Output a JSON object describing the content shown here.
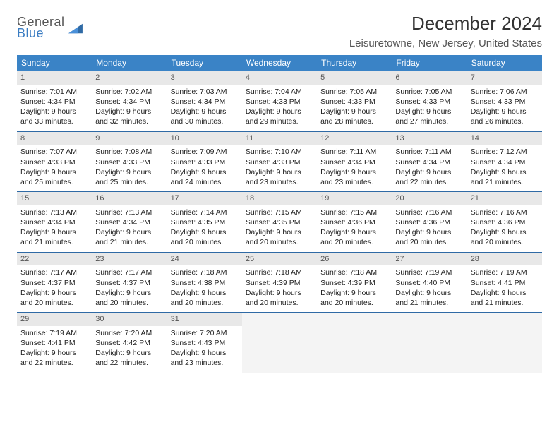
{
  "logo": {
    "line1": "General",
    "line2": "Blue"
  },
  "title": "December 2024",
  "location": "Leisuretowne, New Jersey, United States",
  "header_bg": "#3a83c6",
  "border_color": "#2f6aa5",
  "daynum_bg": "#e8e8e8",
  "day_headers": [
    "Sunday",
    "Monday",
    "Tuesday",
    "Wednesday",
    "Thursday",
    "Friday",
    "Saturday"
  ],
  "weeks": [
    [
      {
        "n": "1",
        "sr": "7:01 AM",
        "ss": "4:34 PM",
        "dl": "9 hours and 33 minutes."
      },
      {
        "n": "2",
        "sr": "7:02 AM",
        "ss": "4:34 PM",
        "dl": "9 hours and 32 minutes."
      },
      {
        "n": "3",
        "sr": "7:03 AM",
        "ss": "4:34 PM",
        "dl": "9 hours and 30 minutes."
      },
      {
        "n": "4",
        "sr": "7:04 AM",
        "ss": "4:33 PM",
        "dl": "9 hours and 29 minutes."
      },
      {
        "n": "5",
        "sr": "7:05 AM",
        "ss": "4:33 PM",
        "dl": "9 hours and 28 minutes."
      },
      {
        "n": "6",
        "sr": "7:05 AM",
        "ss": "4:33 PM",
        "dl": "9 hours and 27 minutes."
      },
      {
        "n": "7",
        "sr": "7:06 AM",
        "ss": "4:33 PM",
        "dl": "9 hours and 26 minutes."
      }
    ],
    [
      {
        "n": "8",
        "sr": "7:07 AM",
        "ss": "4:33 PM",
        "dl": "9 hours and 25 minutes."
      },
      {
        "n": "9",
        "sr": "7:08 AM",
        "ss": "4:33 PM",
        "dl": "9 hours and 25 minutes."
      },
      {
        "n": "10",
        "sr": "7:09 AM",
        "ss": "4:33 PM",
        "dl": "9 hours and 24 minutes."
      },
      {
        "n": "11",
        "sr": "7:10 AM",
        "ss": "4:33 PM",
        "dl": "9 hours and 23 minutes."
      },
      {
        "n": "12",
        "sr": "7:11 AM",
        "ss": "4:34 PM",
        "dl": "9 hours and 23 minutes."
      },
      {
        "n": "13",
        "sr": "7:11 AM",
        "ss": "4:34 PM",
        "dl": "9 hours and 22 minutes."
      },
      {
        "n": "14",
        "sr": "7:12 AM",
        "ss": "4:34 PM",
        "dl": "9 hours and 21 minutes."
      }
    ],
    [
      {
        "n": "15",
        "sr": "7:13 AM",
        "ss": "4:34 PM",
        "dl": "9 hours and 21 minutes."
      },
      {
        "n": "16",
        "sr": "7:13 AM",
        "ss": "4:34 PM",
        "dl": "9 hours and 21 minutes."
      },
      {
        "n": "17",
        "sr": "7:14 AM",
        "ss": "4:35 PM",
        "dl": "9 hours and 20 minutes."
      },
      {
        "n": "18",
        "sr": "7:15 AM",
        "ss": "4:35 PM",
        "dl": "9 hours and 20 minutes."
      },
      {
        "n": "19",
        "sr": "7:15 AM",
        "ss": "4:36 PM",
        "dl": "9 hours and 20 minutes."
      },
      {
        "n": "20",
        "sr": "7:16 AM",
        "ss": "4:36 PM",
        "dl": "9 hours and 20 minutes."
      },
      {
        "n": "21",
        "sr": "7:16 AM",
        "ss": "4:36 PM",
        "dl": "9 hours and 20 minutes."
      }
    ],
    [
      {
        "n": "22",
        "sr": "7:17 AM",
        "ss": "4:37 PM",
        "dl": "9 hours and 20 minutes."
      },
      {
        "n": "23",
        "sr": "7:17 AM",
        "ss": "4:37 PM",
        "dl": "9 hours and 20 minutes."
      },
      {
        "n": "24",
        "sr": "7:18 AM",
        "ss": "4:38 PM",
        "dl": "9 hours and 20 minutes."
      },
      {
        "n": "25",
        "sr": "7:18 AM",
        "ss": "4:39 PM",
        "dl": "9 hours and 20 minutes."
      },
      {
        "n": "26",
        "sr": "7:18 AM",
        "ss": "4:39 PM",
        "dl": "9 hours and 20 minutes."
      },
      {
        "n": "27",
        "sr": "7:19 AM",
        "ss": "4:40 PM",
        "dl": "9 hours and 21 minutes."
      },
      {
        "n": "28",
        "sr": "7:19 AM",
        "ss": "4:41 PM",
        "dl": "9 hours and 21 minutes."
      }
    ],
    [
      {
        "n": "29",
        "sr": "7:19 AM",
        "ss": "4:41 PM",
        "dl": "9 hours and 22 minutes."
      },
      {
        "n": "30",
        "sr": "7:20 AM",
        "ss": "4:42 PM",
        "dl": "9 hours and 22 minutes."
      },
      {
        "n": "31",
        "sr": "7:20 AM",
        "ss": "4:43 PM",
        "dl": "9 hours and 23 minutes."
      },
      null,
      null,
      null,
      null
    ]
  ],
  "labels": {
    "sunrise": "Sunrise:",
    "sunset": "Sunset:",
    "daylight": "Daylight:"
  }
}
